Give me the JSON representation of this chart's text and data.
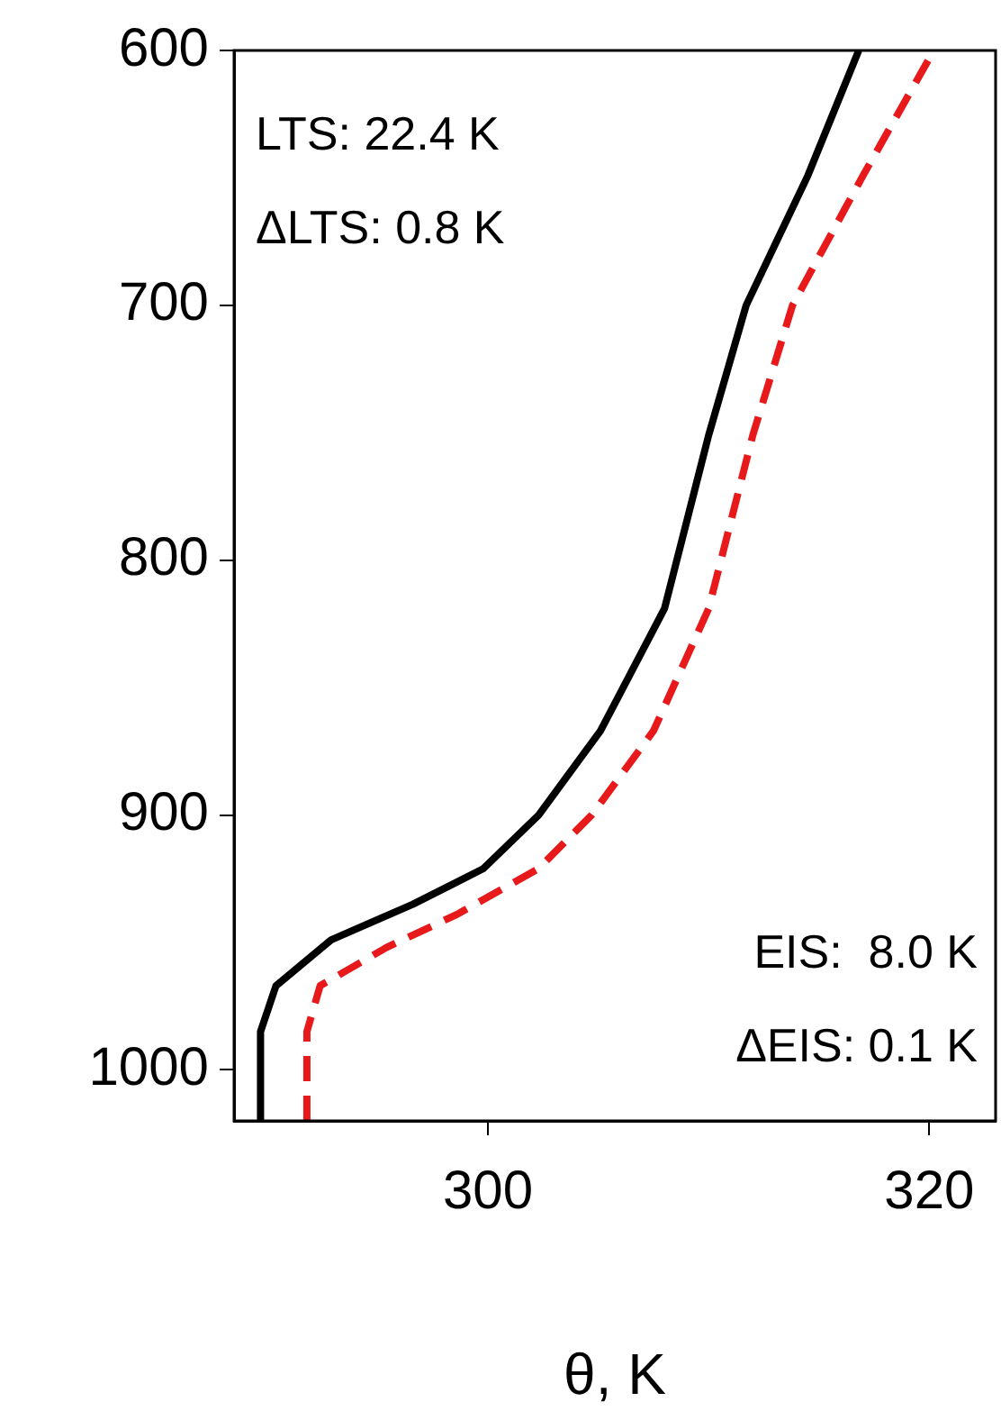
{
  "chart_data": {
    "type": "line",
    "xlabel": "θ, K",
    "xlim": [
      288.5,
      323
    ],
    "xticks": [
      300,
      320
    ],
    "ylim": [
      1020,
      600
    ],
    "yticks": [
      600,
      700,
      800,
      900,
      1000
    ],
    "grid": false,
    "legend": false,
    "marker": "none",
    "series": [
      {
        "color": "#000000",
        "line_style": "solid",
        "x": [
          289.7,
          289.7,
          290.4,
          292.9,
          296.6,
          299.8,
          302.3,
          305.1,
          308.0,
          310.0,
          311.7,
          314.5,
          316.8
        ],
        "values": [
          1020,
          985,
          967,
          949,
          935,
          921,
          900,
          867,
          819,
          751,
          700,
          649,
          600
        ]
      },
      {
        "color": "#e8191b",
        "line_style": "dashed",
        "x": [
          291.8,
          291.8,
          292.4,
          295.4,
          298.6,
          302.3,
          304.7,
          307.5,
          310.0,
          312.0,
          313.8,
          317.0,
          320.2
        ],
        "values": [
          1020,
          985,
          967,
          952,
          939,
          921,
          900,
          867,
          819,
          751,
          700,
          649,
          600
        ]
      }
    ],
    "annotations": [
      "LTS: 22.4 K",
      "ΔLTS: 0.8 K",
      "EIS:  8.0 K",
      "ΔEIS: 0.1 K"
    ]
  }
}
